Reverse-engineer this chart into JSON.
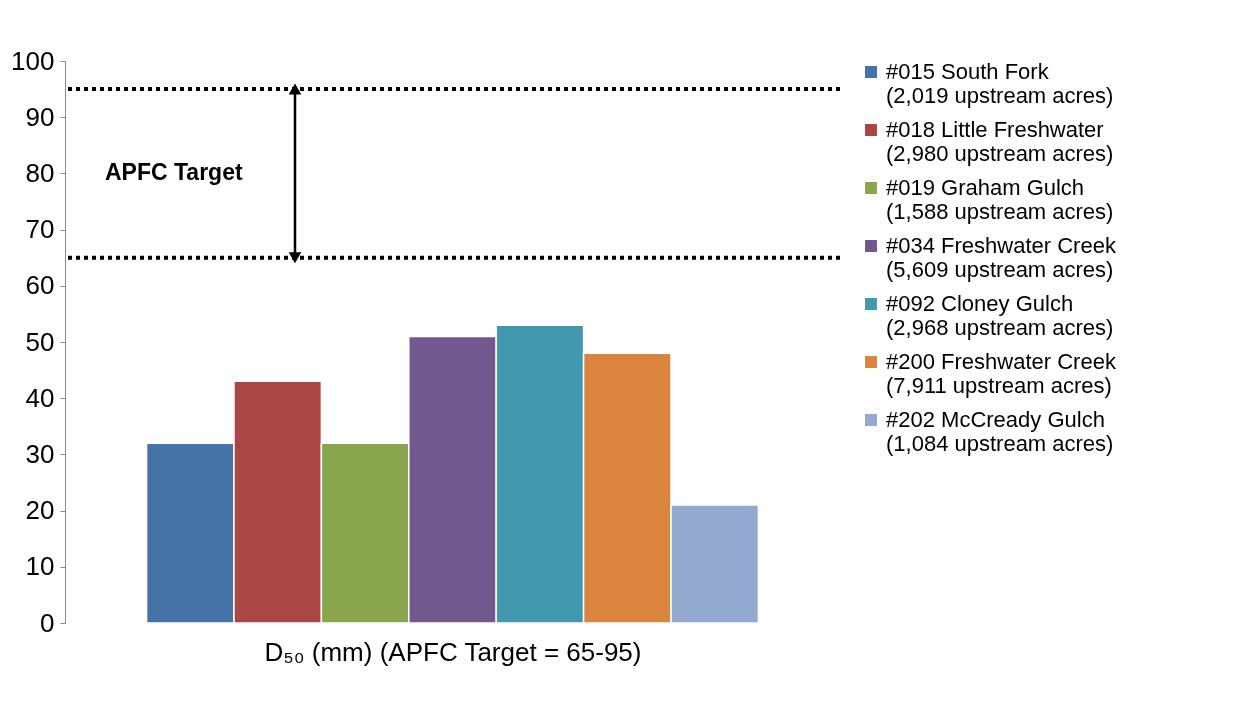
{
  "chart_data": {
    "type": "bar",
    "xlabel": "D₅₀ (mm) (APFC Target = 65-95)",
    "categories": [
      null
    ],
    "series": [
      {
        "name": "#015 South Fork\n(2,019 upstream acres)",
        "color": "#4572a7",
        "values": [
          32
        ]
      },
      {
        "name": "#018 Little Freshwater\n(2,980 upstream acres)",
        "color": "#aa4643",
        "values": [
          43
        ]
      },
      {
        "name": "#019 Graham Gulch\n(1,588 upstream acres)",
        "color": "#89a54e",
        "values": [
          32
        ]
      },
      {
        "name": "#034 Freshwater Creek\n(5,609 upstream acres)",
        "color": "#71588f",
        "values": [
          51
        ]
      },
      {
        "name": "#092 Cloney Gulch\n(2,968 upstream acres)",
        "color": "#4198af",
        "values": [
          53
        ]
      },
      {
        "name": "#200 Freshwater Creek\n(7,911 upstream acres)",
        "color": "#db843d",
        "values": [
          48
        ]
      },
      {
        "name": "#202 McCready Gulch\n(1,084 upstream acres)",
        "color": "#93a9cf",
        "values": [
          21
        ]
      }
    ],
    "ylim": [
      0,
      100
    ],
    "yticks": [
      0,
      10,
      20,
      30,
      40,
      50,
      60,
      70,
      80,
      90,
      100
    ],
    "grid": false,
    "legend": "right",
    "ref_lines": [
      {
        "axis": "y",
        "value": 95,
        "color": "#000000",
        "line_style": "dotted"
      },
      {
        "axis": "y",
        "value": 65,
        "color": "#000000",
        "line_style": "dotted"
      }
    ],
    "annotations": [
      "APFC Target"
    ]
  }
}
